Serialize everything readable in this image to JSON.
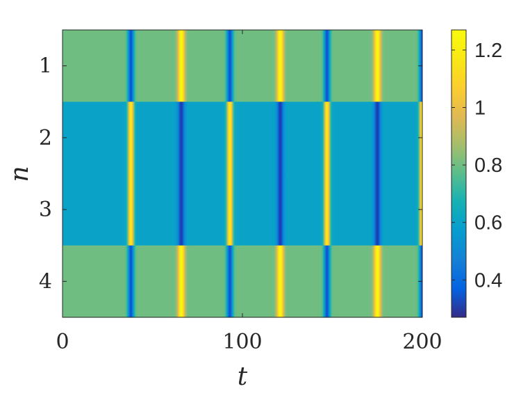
{
  "chart_data": {
    "type": "heatmap",
    "xlabel": "t",
    "ylabel": "n",
    "xlim": [
      0,
      200
    ],
    "ylim": [
      0.5,
      4.5
    ],
    "y_reversed": true,
    "x_ticks": [
      0,
      100,
      200
    ],
    "x_tick_labels": [
      "0",
      "100",
      "200"
    ],
    "y_ticks": [
      1,
      2,
      3,
      4
    ],
    "y_tick_labels": [
      "1",
      "2",
      "3",
      "4"
    ],
    "colormap": "parula",
    "clim": [
      0.27,
      1.27
    ],
    "colorbar": {
      "location": "right",
      "ticks": [
        0.4,
        0.6,
        0.8,
        1.0,
        1.2
      ],
      "tick_labels": [
        "0.4",
        "0.6",
        "0.8",
        "1",
        "1.2"
      ]
    },
    "rows": [
      {
        "n": 1,
        "baseline": 0.8,
        "events": [
          {
            "t": 38,
            "value": 0.34,
            "width": 1.2
          },
          {
            "t": 66,
            "value": 1.25,
            "width": 1.3
          },
          {
            "t": 93,
            "value": 0.34,
            "width": 1.2
          },
          {
            "t": 121,
            "value": 1.25,
            "width": 1.3
          },
          {
            "t": 147,
            "value": 0.34,
            "width": 1.2
          },
          {
            "t": 175,
            "value": 1.25,
            "width": 1.3
          },
          {
            "t": 200,
            "value": 0.34,
            "width": 1.2
          }
        ]
      },
      {
        "n": 2,
        "baseline": 0.6,
        "events": [
          {
            "t": 38,
            "value": 1.18,
            "width": 1.2
          },
          {
            "t": 66,
            "value": 0.3,
            "width": 1.3
          },
          {
            "t": 93,
            "value": 1.18,
            "width": 1.2
          },
          {
            "t": 121,
            "value": 0.3,
            "width": 1.3
          },
          {
            "t": 147,
            "value": 1.18,
            "width": 1.2
          },
          {
            "t": 175,
            "value": 0.3,
            "width": 1.3
          },
          {
            "t": 200,
            "value": 1.18,
            "width": 1.2
          }
        ]
      },
      {
        "n": 3,
        "baseline": 0.6,
        "events": [
          {
            "t": 38,
            "value": 1.18,
            "width": 1.2
          },
          {
            "t": 66,
            "value": 0.3,
            "width": 1.3
          },
          {
            "t": 93,
            "value": 1.18,
            "width": 1.2
          },
          {
            "t": 121,
            "value": 0.3,
            "width": 1.3
          },
          {
            "t": 147,
            "value": 1.18,
            "width": 1.2
          },
          {
            "t": 175,
            "value": 0.3,
            "width": 1.3
          },
          {
            "t": 200,
            "value": 1.18,
            "width": 1.2
          }
        ]
      },
      {
        "n": 4,
        "baseline": 0.8,
        "events": [
          {
            "t": 38,
            "value": 0.34,
            "width": 1.2
          },
          {
            "t": 66,
            "value": 1.25,
            "width": 1.3
          },
          {
            "t": 93,
            "value": 0.34,
            "width": 1.2
          },
          {
            "t": 121,
            "value": 1.25,
            "width": 1.3
          },
          {
            "t": 147,
            "value": 0.34,
            "width": 1.2
          },
          {
            "t": 175,
            "value": 1.25,
            "width": 1.3
          },
          {
            "t": 200,
            "value": 0.34,
            "width": 1.2
          }
        ]
      }
    ]
  }
}
